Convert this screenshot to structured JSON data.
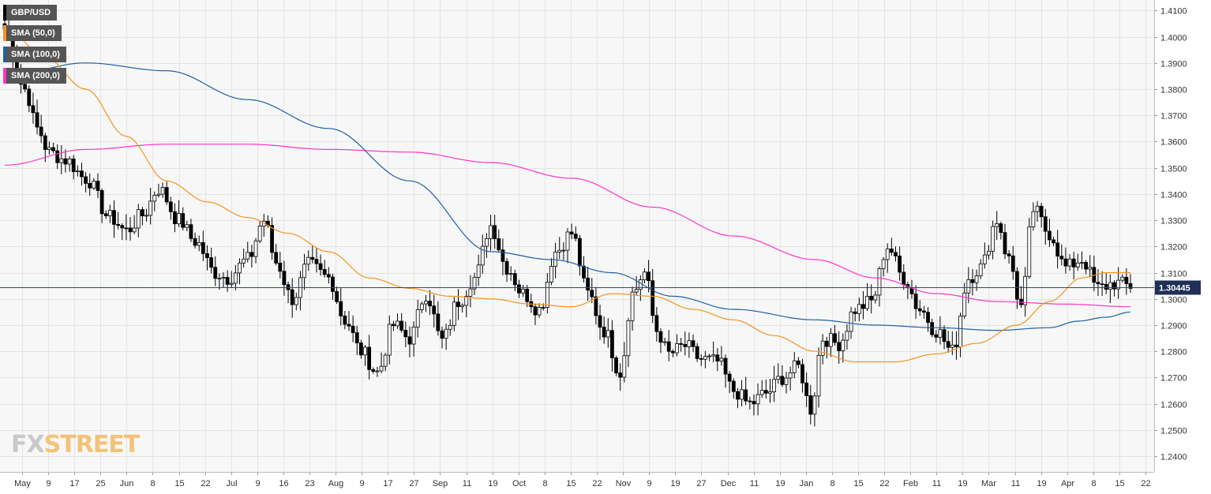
{
  "chart_data": {
    "type": "candlestick",
    "symbol": "GBP/USD",
    "ylim": [
      1.234,
      1.414
    ],
    "current_price": 1.30445,
    "current_price_label": "1.30445",
    "y_ticks": [
      "1.2400",
      "1.2500",
      "1.2600",
      "1.2700",
      "1.2800",
      "1.2900",
      "1.3000",
      "1.3100",
      "1.3200",
      "1.3300",
      "1.3400",
      "1.3500",
      "1.3600",
      "1.3700",
      "1.3800",
      "1.3900",
      "1.4000",
      "1.4100"
    ],
    "x_ticks": [
      "May",
      "9",
      "17",
      "25",
      "Jun",
      "8",
      "15",
      "22",
      "Jul",
      "9",
      "16",
      "23",
      "Aug",
      "9",
      "17",
      "27",
      "Sep",
      "11",
      "19",
      "Oct",
      "8",
      "15",
      "22",
      "Nov",
      "9",
      "19",
      "27",
      "Dec",
      "11",
      "19",
      "Jan",
      "8",
      "15",
      "22",
      "Feb",
      "11",
      "19",
      "Mar",
      "11",
      "19",
      "Apr",
      "8",
      "15",
      "22"
    ],
    "close_anchors": [
      [
        0,
        1.403
      ],
      [
        5,
        1.38
      ],
      [
        8,
        1.365
      ],
      [
        11,
        1.356
      ],
      [
        15,
        1.353
      ],
      [
        20,
        1.346
      ],
      [
        26,
        1.331
      ],
      [
        30,
        1.326
      ],
      [
        34,
        1.332
      ],
      [
        38,
        1.342
      ],
      [
        43,
        1.33
      ],
      [
        47,
        1.322
      ],
      [
        52,
        1.31
      ],
      [
        55,
        1.308
      ],
      [
        60,
        1.315
      ],
      [
        64,
        1.33
      ],
      [
        67,
        1.314
      ],
      [
        71,
        1.3
      ],
      [
        75,
        1.313
      ],
      [
        80,
        1.308
      ],
      [
        84,
        1.292
      ],
      [
        88,
        1.28
      ],
      [
        92,
        1.272
      ],
      [
        96,
        1.29
      ],
      [
        100,
        1.285
      ],
      [
        104,
        1.302
      ],
      [
        108,
        1.284
      ],
      [
        112,
        1.299
      ],
      [
        116,
        1.308
      ],
      [
        120,
        1.328
      ],
      [
        124,
        1.312
      ],
      [
        128,
        1.302
      ],
      [
        132,
        1.296
      ],
      [
        136,
        1.318
      ],
      [
        140,
        1.325
      ],
      [
        144,
        1.302
      ],
      [
        148,
        1.288
      ],
      [
        152,
        1.272
      ],
      [
        155,
        1.302
      ],
      [
        158,
        1.31
      ],
      [
        161,
        1.288
      ],
      [
        164,
        1.279
      ],
      [
        168,
        1.282
      ],
      [
        172,
        1.277
      ],
      [
        176,
        1.276
      ],
      [
        180,
        1.265
      ],
      [
        184,
        1.26
      ],
      [
        188,
        1.264
      ],
      [
        192,
        1.27
      ],
      [
        196,
        1.274
      ],
      [
        199,
        1.258
      ],
      [
        202,
        1.285
      ],
      [
        206,
        1.283
      ],
      [
        210,
        1.296
      ],
      [
        214,
        1.299
      ],
      [
        218,
        1.32
      ],
      [
        222,
        1.308
      ],
      [
        226,
        1.296
      ],
      [
        230,
        1.288
      ],
      [
        234,
        1.28
      ],
      [
        238,
        1.308
      ],
      [
        241,
        1.312
      ],
      [
        245,
        1.33
      ],
      [
        248,
        1.315
      ],
      [
        251,
        1.297
      ],
      [
        254,
        1.334
      ],
      [
        258,
        1.325
      ],
      [
        262,
        1.312
      ],
      [
        266,
        1.315
      ],
      [
        270,
        1.304
      ],
      [
        274,
        1.306
      ],
      [
        278,
        1.305
      ]
    ],
    "sma_50_anchors": [
      [
        0,
        1.404
      ],
      [
        10,
        1.392
      ],
      [
        20,
        1.38
      ],
      [
        30,
        1.362
      ],
      [
        40,
        1.345
      ],
      [
        50,
        1.337
      ],
      [
        60,
        1.331
      ],
      [
        70,
        1.325
      ],
      [
        80,
        1.318
      ],
      [
        90,
        1.308
      ],
      [
        100,
        1.304
      ],
      [
        110,
        1.301
      ],
      [
        120,
        1.3
      ],
      [
        130,
        1.298
      ],
      [
        140,
        1.297
      ],
      [
        150,
        1.302
      ],
      [
        160,
        1.301
      ],
      [
        170,
        1.296
      ],
      [
        180,
        1.292
      ],
      [
        190,
        1.286
      ],
      [
        200,
        1.28
      ],
      [
        210,
        1.276
      ],
      [
        220,
        1.276
      ],
      [
        230,
        1.279
      ],
      [
        240,
        1.283
      ],
      [
        250,
        1.29
      ],
      [
        258,
        1.299
      ],
      [
        266,
        1.308
      ],
      [
        272,
        1.31
      ],
      [
        278,
        1.31
      ]
    ],
    "sma_100_anchors": [
      [
        0,
        1.385
      ],
      [
        20,
        1.39
      ],
      [
        40,
        1.387
      ],
      [
        60,
        1.376
      ],
      [
        80,
        1.365
      ],
      [
        100,
        1.345
      ],
      [
        120,
        1.318
      ],
      [
        135,
        1.315
      ],
      [
        150,
        1.31
      ],
      [
        165,
        1.301
      ],
      [
        180,
        1.296
      ],
      [
        200,
        1.292
      ],
      [
        215,
        1.29
      ],
      [
        230,
        1.289
      ],
      [
        245,
        1.288
      ],
      [
        258,
        1.289
      ],
      [
        265,
        1.2915
      ],
      [
        272,
        1.293
      ],
      [
        278,
        1.295
      ]
    ],
    "sma_200_anchors": [
      [
        0,
        1.351
      ],
      [
        20,
        1.357
      ],
      [
        40,
        1.359
      ],
      [
        60,
        1.359
      ],
      [
        80,
        1.357
      ],
      [
        100,
        1.356
      ],
      [
        120,
        1.352
      ],
      [
        140,
        1.346
      ],
      [
        160,
        1.335
      ],
      [
        180,
        1.324
      ],
      [
        200,
        1.315
      ],
      [
        215,
        1.308
      ],
      [
        230,
        1.302
      ],
      [
        245,
        1.299
      ],
      [
        262,
        1.298
      ],
      [
        278,
        1.297
      ]
    ],
    "grid": true
  },
  "legend": {
    "symbol": "GBP/USD",
    "items": [
      {
        "label": "SMA (50,0)",
        "color": "#f7931e"
      },
      {
        "label": "SMA (100,0)",
        "color": "#1f5fa8"
      },
      {
        "label": "SMA (200,0)",
        "color": "#ff33cc"
      }
    ]
  },
  "branding": {
    "fx": "FX",
    "street": "STREET"
  },
  "colors": {
    "background": "#f7f7f7",
    "grid": "#e4e4e4",
    "up_candle": "#ffffff",
    "down_candle": "#000000",
    "price_line": "#2b4a80",
    "price_tag": "#1f2f55"
  }
}
